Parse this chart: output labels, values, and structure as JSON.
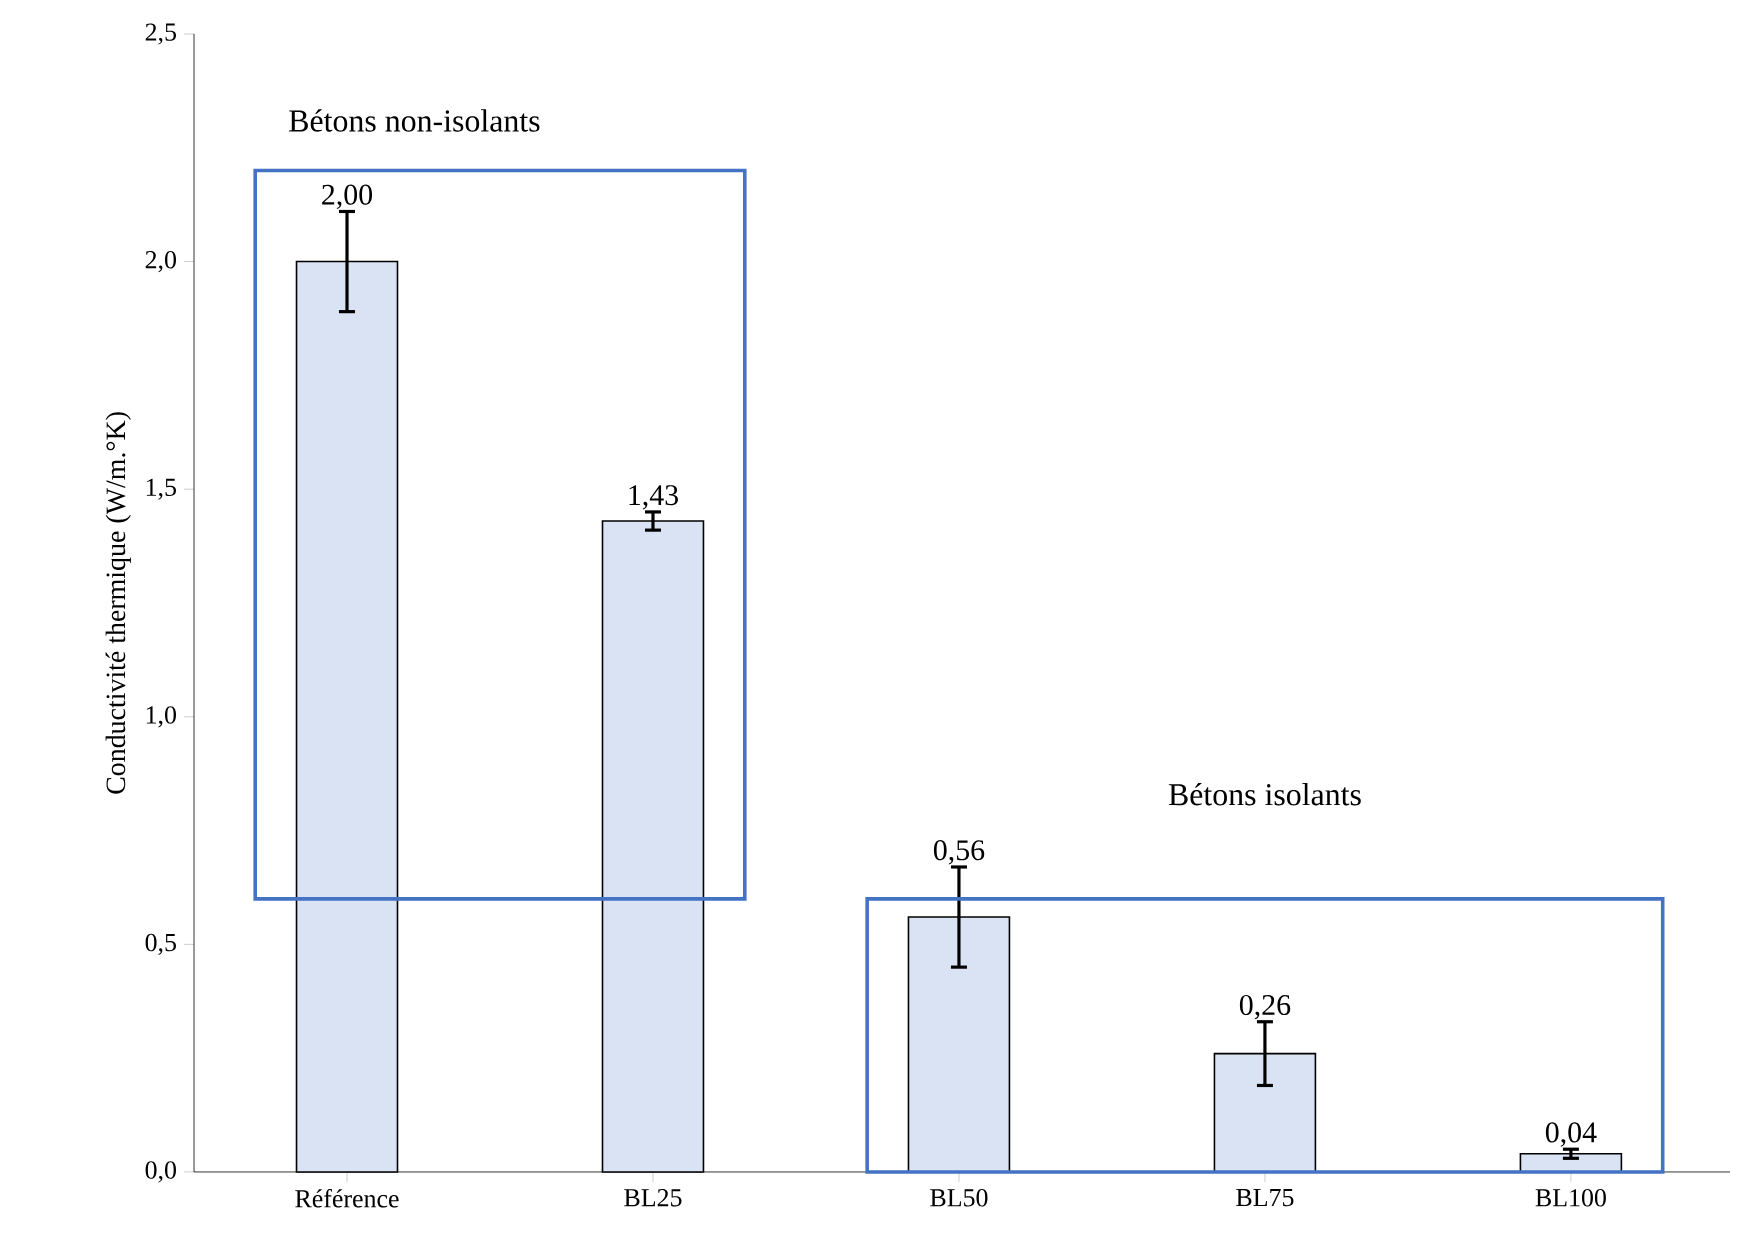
{
  "chart_data": {
    "type": "bar",
    "ylabel": "Conductivité thermique (W/m.°K)",
    "categories": [
      "Référence",
      "BL25",
      "BL50",
      "BL75",
      "BL100"
    ],
    "values": [
      2.0,
      1.43,
      0.56,
      0.26,
      0.04
    ],
    "value_labels": [
      "2,00",
      "1,43",
      "0,56",
      "0,26",
      "0,04"
    ],
    "errors": [
      0.11,
      0.02,
      0.11,
      0.07,
      0.01
    ],
    "color": "#dae3f3",
    "ylim": [
      0,
      2.5
    ],
    "yticks": [
      {
        "value": 0,
        "label": "0,0"
      },
      {
        "value": 0.5,
        "label": "0,5"
      },
      {
        "value": 1,
        "label": "1,0"
      },
      {
        "value": 1.5,
        "label": "1,5"
      },
      {
        "value": 2,
        "label": "2,0"
      },
      {
        "value": 2.5,
        "label": "2,5"
      }
    ],
    "annotations": [
      "Bétons non-isolants",
      "Bétons isolants"
    ]
  }
}
